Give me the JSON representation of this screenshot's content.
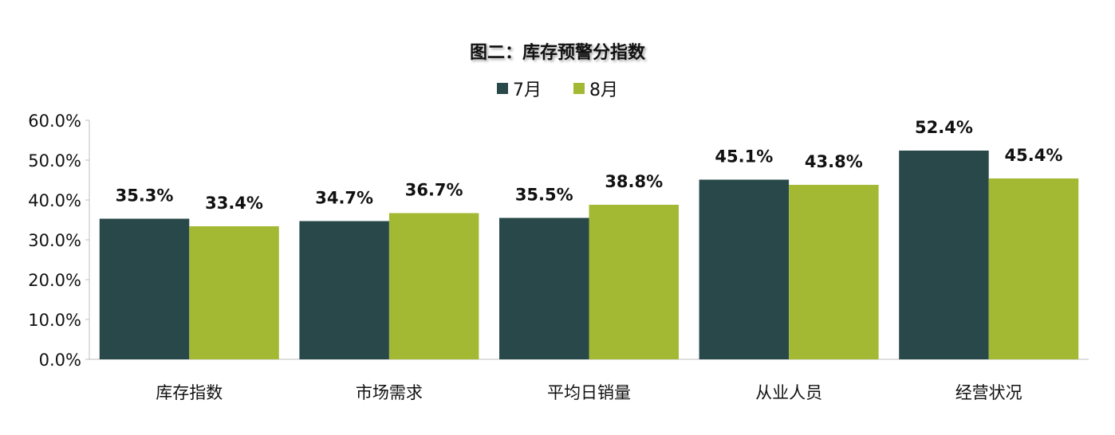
{
  "chart_data": {
    "type": "bar",
    "title": "图二：库存预警分指数",
    "categories": [
      "库存指数",
      "市场需求",
      "平均日销量",
      "从业人员",
      "经营状况"
    ],
    "series": [
      {
        "name": "7月",
        "color": "#29484A",
        "values": [
          35.3,
          34.7,
          35.5,
          45.1,
          52.4
        ]
      },
      {
        "name": "8月",
        "color": "#A3B933",
        "values": [
          33.4,
          36.7,
          38.8,
          43.8,
          45.4
        ]
      }
    ],
    "ylim": [
      0,
      60
    ],
    "yticks": [
      "0.0%",
      "10.0%",
      "20.0%",
      "30.0%",
      "40.0%",
      "50.0%",
      "60.0%"
    ],
    "value_format": "percent-1dp",
    "grid": false,
    "legend": "top-center"
  }
}
